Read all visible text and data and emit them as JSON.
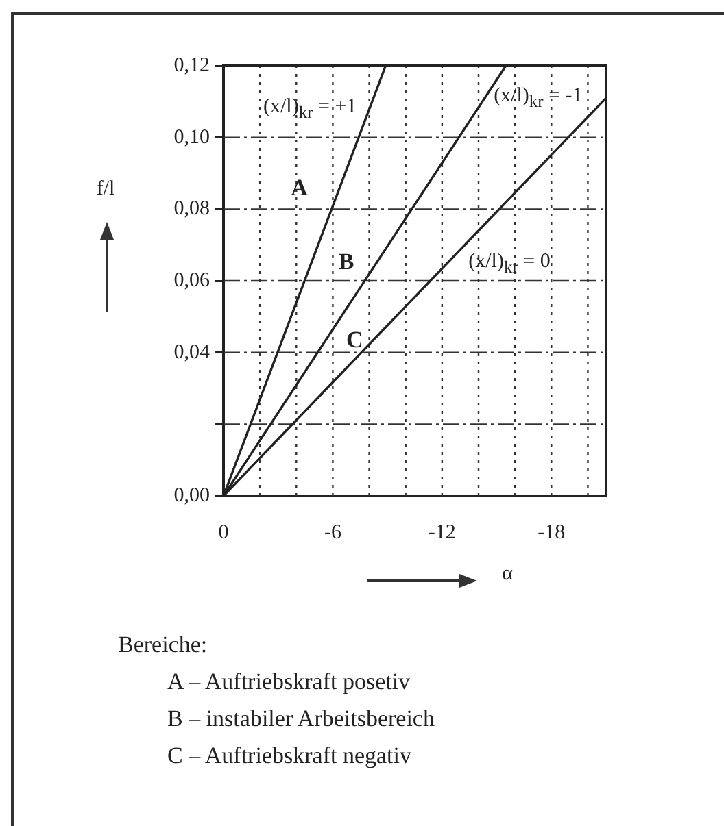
{
  "chart_data": {
    "type": "line",
    "xlabel": "α",
    "ylabel": "f/l",
    "xlim": [
      0,
      -21
    ],
    "xticks": [
      0,
      {
        "value": -2,
        "label": null
      },
      {
        "value": -4,
        "label": null
      },
      -6,
      {
        "value": -8,
        "label": null
      },
      {
        "value": -10,
        "label": null
      },
      -12,
      {
        "value": -14,
        "label": null
      },
      {
        "value": -16,
        "label": null
      },
      -18,
      {
        "value": -20,
        "label": null
      }
    ],
    "ylim": [
      0,
      0.12
    ],
    "yticks": [
      {
        "value": 0,
        "label": "0,00"
      },
      {
        "value": 0.02,
        "label": null
      },
      {
        "value": 0.04,
        "label": "0,04"
      },
      {
        "value": 0.06,
        "label": "0,06"
      },
      {
        "value": 0.08,
        "label": "0,08"
      },
      {
        "value": 0.1,
        "label": "0,10"
      },
      {
        "value": 0.12,
        "label": "0,12"
      }
    ],
    "grid": true,
    "series": [
      {
        "name": "(x/l)$_{kr}$ = +1",
        "color": "#222222",
        "x": [
          0,
          -8.9
        ],
        "values": [
          0,
          0.12
        ]
      },
      {
        "name": "(x/l)$_{kr}$ = -1",
        "color": "#222222",
        "x": [
          0,
          -15.5
        ],
        "values": [
          0,
          0.12
        ]
      },
      {
        "name": "(x/l)$_{kr}$ = 0",
        "color": "#222222",
        "x": [
          0,
          -21
        ],
        "values": [
          0,
          0.111
        ]
      }
    ],
    "annotations": [
      "A",
      "B",
      "C",
      "Bereiche:",
      "A – Auftriebskraft posetiv",
      "B – instabiler Arbeitsbereich",
      "C – Auftriebskraft negativ"
    ]
  }
}
